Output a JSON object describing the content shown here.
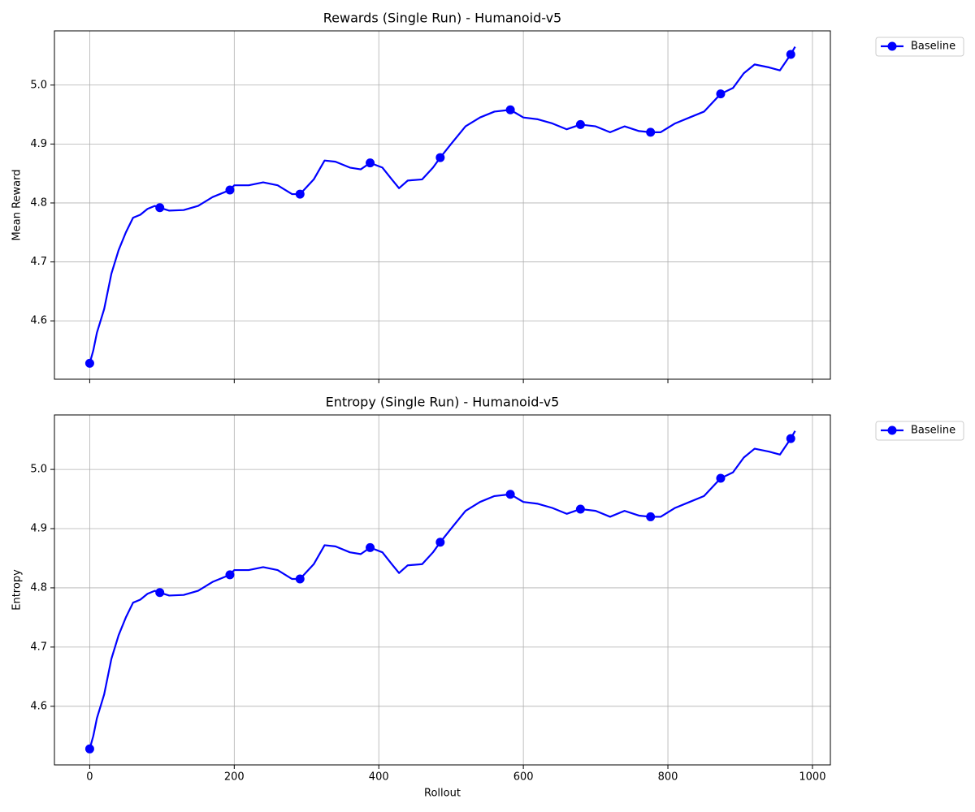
{
  "chart_data": [
    {
      "type": "line",
      "title": "Rewards (Single Run) - Humanoid-v5",
      "ylabel": "Mean Reward",
      "x_tick_labels": false,
      "x": [
        0,
        5,
        10,
        20,
        30,
        40,
        50,
        60,
        70,
        80,
        90,
        97,
        110,
        130,
        150,
        170,
        194,
        200,
        220,
        240,
        260,
        280,
        291,
        310,
        325,
        340,
        360,
        375,
        388,
        405,
        418,
        428,
        440,
        460,
        475,
        485,
        500,
        520,
        540,
        560,
        582,
        600,
        620,
        640,
        660,
        679,
        700,
        720,
        740,
        760,
        776,
        790,
        810,
        830,
        850,
        873,
        890,
        905,
        920,
        940,
        955,
        970,
        976
      ],
      "series": [
        {
          "name": "Baseline",
          "color": "#0000ff",
          "values": [
            4.528,
            4.55,
            4.58,
            4.62,
            4.68,
            4.72,
            4.75,
            4.775,
            4.78,
            4.79,
            4.795,
            4.792,
            4.787,
            4.788,
            4.795,
            4.81,
            4.822,
            4.83,
            4.83,
            4.835,
            4.83,
            4.815,
            4.815,
            4.84,
            4.872,
            4.87,
            4.86,
            4.857,
            4.868,
            4.86,
            4.84,
            4.825,
            4.838,
            4.84,
            4.86,
            4.877,
            4.9,
            4.93,
            4.945,
            4.955,
            4.958,
            4.945,
            4.942,
            4.935,
            4.925,
            4.933,
            4.93,
            4.92,
            4.93,
            4.922,
            4.92,
            4.92,
            4.935,
            4.945,
            4.955,
            4.985,
            4.995,
            5.02,
            5.035,
            5.03,
            5.025,
            5.052,
            5.065
          ]
        }
      ],
      "markevery": 97,
      "xlim": [
        -48.8,
        1024.8
      ],
      "ylim": [
        4.501,
        5.092
      ],
      "xticks": [
        0,
        200,
        400,
        600,
        800,
        1000
      ],
      "yticks": [
        4.6,
        4.7,
        4.8,
        4.9,
        {
          "value": 5,
          "label": "5.0"
        }
      ],
      "grid": true,
      "legend": "outside upper right"
    },
    {
      "type": "line",
      "title": "Entropy (Single Run) - Humanoid-v5",
      "ylabel": "Entropy",
      "xlabel": "Rollout",
      "x_tick_labels": true,
      "x": [
        0,
        5,
        10,
        20,
        30,
        40,
        50,
        60,
        70,
        80,
        90,
        97,
        110,
        130,
        150,
        170,
        194,
        200,
        220,
        240,
        260,
        280,
        291,
        310,
        325,
        340,
        360,
        375,
        388,
        405,
        418,
        428,
        440,
        460,
        475,
        485,
        500,
        520,
        540,
        560,
        582,
        600,
        620,
        640,
        660,
        679,
        700,
        720,
        740,
        760,
        776,
        790,
        810,
        830,
        850,
        873,
        890,
        905,
        920,
        940,
        955,
        970,
        976
      ],
      "series": [
        {
          "name": "Baseline",
          "color": "#0000ff",
          "values": [
            4.528,
            4.55,
            4.58,
            4.62,
            4.68,
            4.72,
            4.75,
            4.775,
            4.78,
            4.79,
            4.795,
            4.792,
            4.787,
            4.788,
            4.795,
            4.81,
            4.822,
            4.83,
            4.83,
            4.835,
            4.83,
            4.815,
            4.815,
            4.84,
            4.872,
            4.87,
            4.86,
            4.857,
            4.868,
            4.86,
            4.84,
            4.825,
            4.838,
            4.84,
            4.86,
            4.877,
            4.9,
            4.93,
            4.945,
            4.955,
            4.958,
            4.945,
            4.942,
            4.935,
            4.925,
            4.933,
            4.93,
            4.92,
            4.93,
            4.922,
            4.92,
            4.92,
            4.935,
            4.945,
            4.955,
            4.985,
            4.995,
            5.02,
            5.035,
            5.03,
            5.025,
            5.052,
            5.065
          ]
        }
      ],
      "markevery": 97,
      "xlim": [
        -48.8,
        1024.8
      ],
      "ylim": [
        4.501,
        5.092
      ],
      "xticks": [
        0,
        200,
        400,
        600,
        800,
        1000
      ],
      "yticks": [
        4.6,
        4.7,
        4.8,
        4.9,
        {
          "value": 5,
          "label": "5.0"
        }
      ],
      "grid": true,
      "legend": "outside upper right"
    }
  ]
}
